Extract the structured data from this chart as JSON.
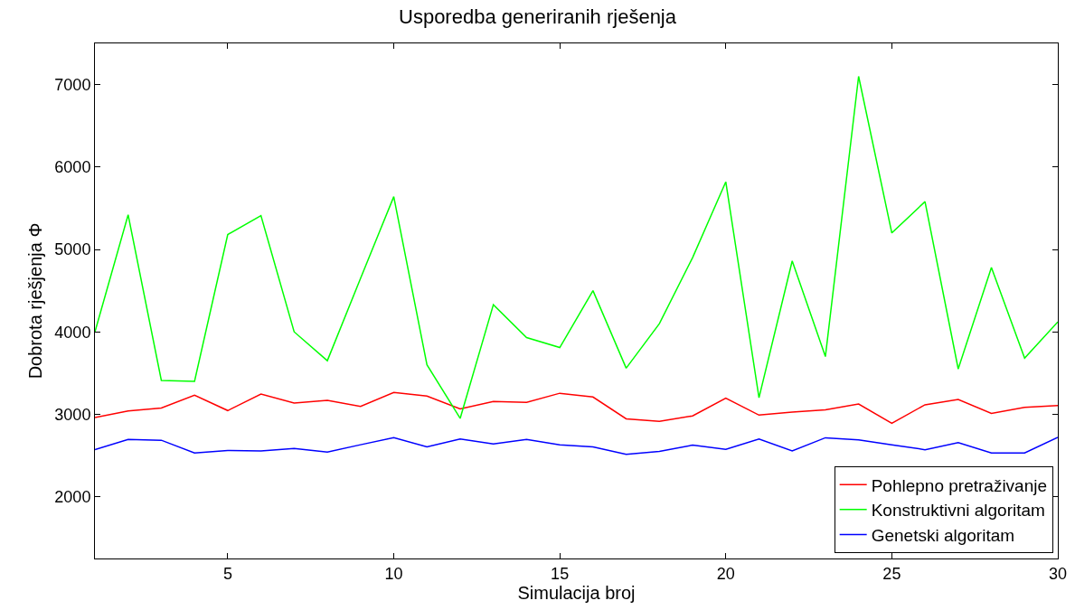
{
  "chart_data": {
    "type": "line",
    "title": "Usporedba generiranih rješenja",
    "xlabel": "Simulacija broj",
    "ylabel": "Dobrota rješjenja Φ",
    "x": [
      1,
      2,
      3,
      4,
      5,
      6,
      7,
      8,
      9,
      10,
      11,
      12,
      13,
      14,
      15,
      16,
      17,
      18,
      19,
      20,
      21,
      22,
      23,
      24,
      25,
      26,
      27,
      28,
      29,
      30
    ],
    "series": [
      {
        "name": "Pohlepno pretraživanje",
        "color": "#ff0000",
        "values": [
          2960,
          3040,
          3075,
          3230,
          3045,
          3245,
          3135,
          3170,
          3095,
          3265,
          3220,
          3065,
          3155,
          3145,
          3255,
          3210,
          2945,
          2915,
          2980,
          3195,
          2990,
          3025,
          3055,
          3125,
          2890,
          3115,
          3180,
          3010,
          3085,
          3105
        ]
      },
      {
        "name": "Konstruktivni algoritam",
        "color": "#00ff00",
        "values": [
          4000,
          5420,
          3410,
          3400,
          5180,
          5410,
          4000,
          3650,
          4650,
          5640,
          3600,
          2950,
          4330,
          3930,
          3810,
          4500,
          3560,
          4100,
          4900,
          5820,
          3200,
          4860,
          3700,
          7100,
          5200,
          5580,
          3550,
          4780,
          3680,
          4120
        ]
      },
      {
        "name": "Genetski algoritam",
        "color": "#0000ff",
        "values": [
          2570,
          2695,
          2685,
          2530,
          2560,
          2555,
          2585,
          2540,
          2630,
          2715,
          2605,
          2700,
          2640,
          2695,
          2630,
          2605,
          2515,
          2550,
          2625,
          2575,
          2700,
          2555,
          2715,
          2690,
          2630,
          2570,
          2655,
          2530,
          2530,
          2720
        ]
      }
    ],
    "xlim": [
      1,
      30
    ],
    "xticks": [
      5,
      10,
      15,
      20,
      25,
      30
    ],
    "ylim": [
      1250,
      7500
    ],
    "yticks": [
      2000,
      3000,
      4000,
      5000,
      6000,
      7000
    ],
    "grid": false,
    "legend": "bottom right",
    "line_style": "solid",
    "marker": "none"
  }
}
